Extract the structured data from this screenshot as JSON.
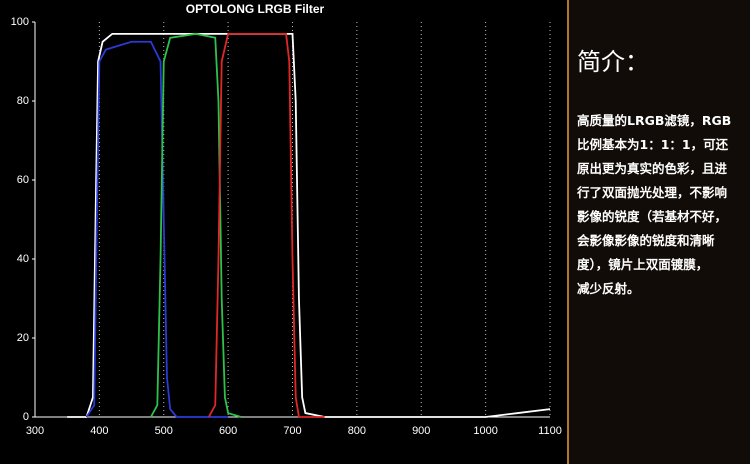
{
  "chart_data": {
    "type": "line",
    "title": "OPTOLONG LRGB Filter",
    "xlim": [
      300,
      1100
    ],
    "xticks": [
      300,
      400,
      500,
      600,
      700,
      800,
      900,
      1000,
      1100
    ],
    "ylim": [
      0,
      100
    ],
    "yticks": [
      0,
      20,
      40,
      60,
      80,
      100
    ],
    "grid": "x",
    "series": [
      {
        "color": "#ffffff",
        "x": [
          350,
          380,
          390,
          395,
          398,
          405,
          420,
          450,
          500,
          550,
          600,
          650,
          690,
          700,
          705,
          710,
          715,
          720,
          750,
          800,
          900,
          1000,
          1050,
          1100
        ],
        "values": [
          0,
          0,
          5,
          60,
          90,
          95,
          97,
          97,
          97,
          97,
          97,
          97,
          97,
          97,
          80,
          30,
          5,
          1,
          0,
          0,
          0,
          0,
          1,
          2
        ]
      },
      {
        "color": "#2a3bd6",
        "x": [
          380,
          392,
          396,
          400,
          410,
          450,
          480,
          495,
          500,
          505,
          510,
          520,
          600
        ],
        "values": [
          0,
          3,
          50,
          90,
          93,
          95,
          95,
          90,
          50,
          10,
          2,
          0,
          0
        ]
      },
      {
        "color": "#2fc24a",
        "x": [
          480,
          490,
          495,
          500,
          510,
          550,
          580,
          585,
          590,
          595,
          600,
          620
        ],
        "values": [
          0,
          3,
          40,
          90,
          96,
          97,
          96,
          80,
          30,
          5,
          1,
          0
        ]
      },
      {
        "color": "#e02828",
        "x": [
          570,
          580,
          585,
          590,
          600,
          650,
          690,
          695,
          700,
          705,
          710,
          750
        ],
        "values": [
          0,
          3,
          40,
          90,
          97,
          97,
          97,
          90,
          40,
          5,
          0,
          0
        ]
      }
    ]
  },
  "side_panel": {
    "heading": "简介：",
    "lines": [
      "高质量的LRGB滤镜，RGB",
      "比例基本为1：1：1，可还",
      "原出更为真实的色彩，且进",
      "行了双面抛光处理，不影响",
      "影像的锐度（若基材不好，",
      "会影像影像的锐度和清晰",
      "度），镜片上双面镀膜，",
      "减少反射。"
    ]
  }
}
